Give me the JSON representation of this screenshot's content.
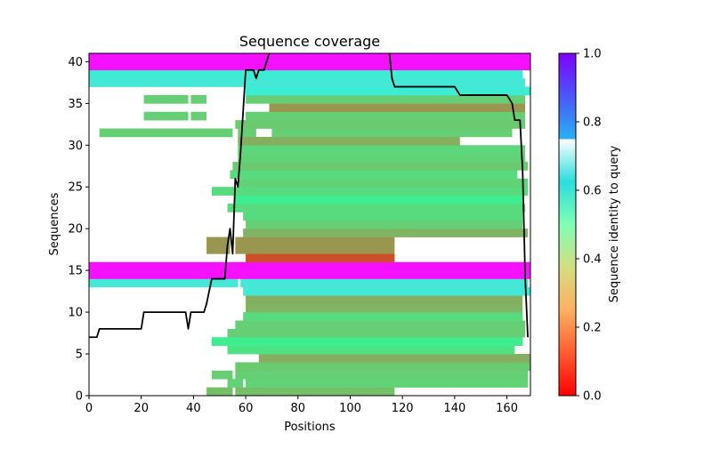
{
  "chart_data": {
    "type": "heatmap",
    "title": "Sequence coverage",
    "xlabel": "Positions",
    "ylabel": "Sequences",
    "xlim": [
      0,
      169
    ],
    "ylim": [
      0,
      41
    ],
    "xticks": [
      0,
      20,
      40,
      60,
      80,
      100,
      120,
      140,
      160
    ],
    "yticks": [
      0,
      5,
      10,
      15,
      20,
      25,
      30,
      35,
      40
    ],
    "grid": false,
    "colorbar": {
      "label": "Sequence identity to query",
      "range": [
        0,
        1
      ],
      "ticks": [
        "0.0",
        "0.2",
        "0.4",
        "0.6",
        "0.8",
        "1.0"
      ],
      "colormap": "rainbow_r"
    },
    "alignments": [
      {
        "row": 0,
        "segments": [
          [
            45,
            55
          ],
          [
            56,
            117
          ]
        ],
        "identity": 0.27
      },
      {
        "row": 1,
        "segments": [
          [
            53,
            59
          ],
          [
            60,
            168
          ]
        ],
        "identity": 0.31
      },
      {
        "row": 2,
        "segments": [
          [
            47,
            55
          ],
          [
            56,
            168
          ]
        ],
        "identity": 0.3
      },
      {
        "row": 3,
        "segments": [
          [
            56,
            169
          ]
        ],
        "identity": 0.29
      },
      {
        "row": 4,
        "segments": [
          [
            65,
            169
          ]
        ],
        "identity": 0.24
      },
      {
        "row": 5,
        "segments": [
          [
            53,
            163
          ]
        ],
        "identity": 0.35
      },
      {
        "row": 6,
        "segments": [
          [
            47,
            166
          ]
        ],
        "identity": 0.38
      },
      {
        "row": 7,
        "segments": [
          [
            53,
            167
          ]
        ],
        "identity": 0.3
      },
      {
        "row": 8,
        "segments": [
          [
            56,
            167
          ]
        ],
        "identity": 0.3
      },
      {
        "row": 9,
        "segments": [
          [
            59,
            166
          ]
        ],
        "identity": 0.33
      },
      {
        "row": 10,
        "segments": [
          [
            60,
            166
          ]
        ],
        "identity": 0.25
      },
      {
        "row": 11,
        "segments": [
          [
            60,
            166
          ]
        ],
        "identity": 0.24
      },
      {
        "row": 12,
        "segments": [
          [
            59,
            169
          ]
        ],
        "identity": 0.63
      },
      {
        "row": 13,
        "segments": [
          [
            0,
            57
          ],
          [
            58,
            168
          ]
        ],
        "identity": 0.64
      },
      {
        "row": 14,
        "segments": [
          [
            0,
            169
          ]
        ],
        "identity": 0.98
      },
      {
        "row": 15,
        "segments": [
          [
            0,
            169
          ]
        ],
        "identity": 0.98
      },
      {
        "row": 16,
        "segments": [
          [
            60,
            117
          ]
        ],
        "identity": 0.1
      },
      {
        "row": 17,
        "segments": [
          [
            45,
            54
          ],
          [
            56,
            117
          ]
        ],
        "identity": 0.2
      },
      {
        "row": 18,
        "segments": [
          [
            45,
            54
          ],
          [
            56,
            117
          ]
        ],
        "identity": 0.2
      },
      {
        "row": 19,
        "segments": [
          [
            59,
            168
          ]
        ],
        "identity": 0.25
      },
      {
        "row": 20,
        "segments": [
          [
            60,
            166
          ]
        ],
        "identity": 0.3
      },
      {
        "row": 21,
        "segments": [
          [
            59,
            166
          ]
        ],
        "identity": 0.33
      },
      {
        "row": 22,
        "segments": [
          [
            53,
            167
          ]
        ],
        "identity": 0.33
      },
      {
        "row": 23,
        "segments": [
          [
            56,
            166
          ]
        ],
        "identity": 0.38
      },
      {
        "row": 24,
        "segments": [
          [
            47,
            168
          ]
        ],
        "identity": 0.33
      },
      {
        "row": 25,
        "segments": [
          [
            57,
            168
          ]
        ],
        "identity": 0.31
      },
      {
        "row": 26,
        "segments": [
          [
            54,
            164
          ]
        ],
        "identity": 0.33
      },
      {
        "row": 27,
        "segments": [
          [
            55,
            168
          ]
        ],
        "identity": 0.29
      },
      {
        "row": 28,
        "segments": [
          [
            57,
            167
          ]
        ],
        "identity": 0.31
      },
      {
        "row": 29,
        "segments": [
          [
            57,
            167
          ]
        ],
        "identity": 0.32
      },
      {
        "row": 30,
        "segments": [
          [
            57,
            142
          ]
        ],
        "identity": 0.24
      },
      {
        "row": 31,
        "segments": [
          [
            4,
            55
          ],
          [
            57,
            64
          ],
          [
            70,
            162
          ]
        ],
        "identity": 0.3
      },
      {
        "row": 32,
        "segments": [
          [
            56,
            167
          ]
        ],
        "identity": 0.29
      },
      {
        "row": 33,
        "segments": [
          [
            21,
            38
          ],
          [
            39,
            45
          ],
          [
            60,
            167
          ]
        ],
        "identity": 0.3
      },
      {
        "row": 34,
        "segments": [
          [
            69,
            167
          ]
        ],
        "identity": 0.2
      },
      {
        "row": 35,
        "segments": [
          [
            21,
            38
          ],
          [
            39,
            45
          ],
          [
            60,
            167
          ]
        ],
        "identity": 0.3
      },
      {
        "row": 36,
        "segments": [
          [
            60,
            169
          ]
        ],
        "identity": 0.62
      },
      {
        "row": 37,
        "segments": [
          [
            0,
            167
          ]
        ],
        "identity": 0.64
      },
      {
        "row": 38,
        "segments": [
          [
            0,
            166
          ]
        ],
        "identity": 0.62
      },
      {
        "row": 39,
        "segments": [
          [
            0,
            169
          ]
        ],
        "identity": 0.98
      },
      {
        "row": 40,
        "segments": [
          [
            0,
            169
          ]
        ],
        "identity": 0.98
      }
    ],
    "coverage_line": {
      "color": "#000000",
      "x": [
        0,
        3,
        4,
        20,
        21,
        37,
        38,
        39,
        44,
        45,
        47,
        52,
        53,
        54,
        55,
        56,
        57,
        58,
        59,
        60,
        61,
        62,
        63,
        64,
        65,
        66,
        67,
        68,
        69,
        70,
        110,
        115,
        116,
        117,
        140,
        141,
        142,
        160,
        161,
        162,
        163,
        164,
        165,
        166,
        167,
        168
      ],
      "y": [
        7,
        7,
        8,
        8,
        10,
        10,
        8,
        10,
        10,
        11,
        14,
        14,
        18,
        20,
        17,
        26,
        25,
        29,
        34,
        39,
        39,
        39,
        39,
        38,
        39,
        39,
        39,
        40,
        41,
        42,
        42,
        41,
        38,
        37,
        37,
        36.5,
        36,
        36,
        35.5,
        35,
        33,
        33,
        33,
        27,
        14,
        7
      ]
    }
  }
}
